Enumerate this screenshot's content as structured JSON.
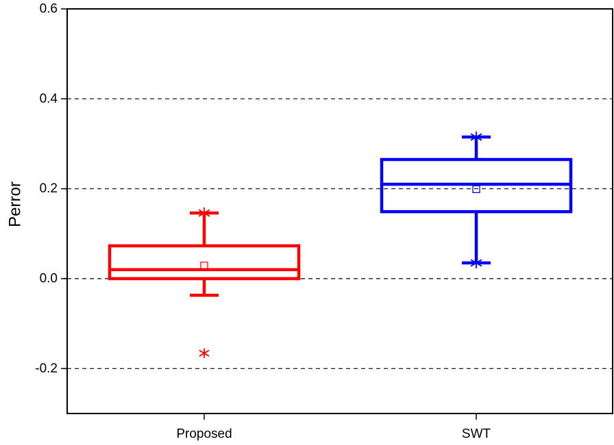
{
  "chart_data": {
    "type": "box",
    "title": "",
    "xlabel": "",
    "ylabel": "Perror",
    "ylim": [
      -0.3,
      0.6
    ],
    "yticks": [
      -0.2,
      0.0,
      0.2,
      0.4,
      0.6
    ],
    "ytick_labels": [
      "-0.2",
      "0.0",
      "0.2",
      "0.4",
      "0.6"
    ],
    "grid": "horizontal dashed at major ticks",
    "categories": [
      "Proposed",
      "SWT"
    ],
    "series": [
      {
        "name": "Proposed",
        "color": "#ff0000",
        "q1": 0.0,
        "median": 0.02,
        "q3": 0.073,
        "whisker_low": -0.037,
        "whisker_high": 0.146,
        "mean": 0.029,
        "extremes": [
          0.146
        ],
        "outliers": [
          -0.166
        ]
      },
      {
        "name": "SWT",
        "color": "#0000ff",
        "q1": 0.149,
        "median": 0.21,
        "q3": 0.265,
        "whisker_low": 0.035,
        "whisker_high": 0.315,
        "mean": 0.199,
        "extremes": [
          0.315,
          0.035
        ],
        "outliers": []
      }
    ]
  }
}
